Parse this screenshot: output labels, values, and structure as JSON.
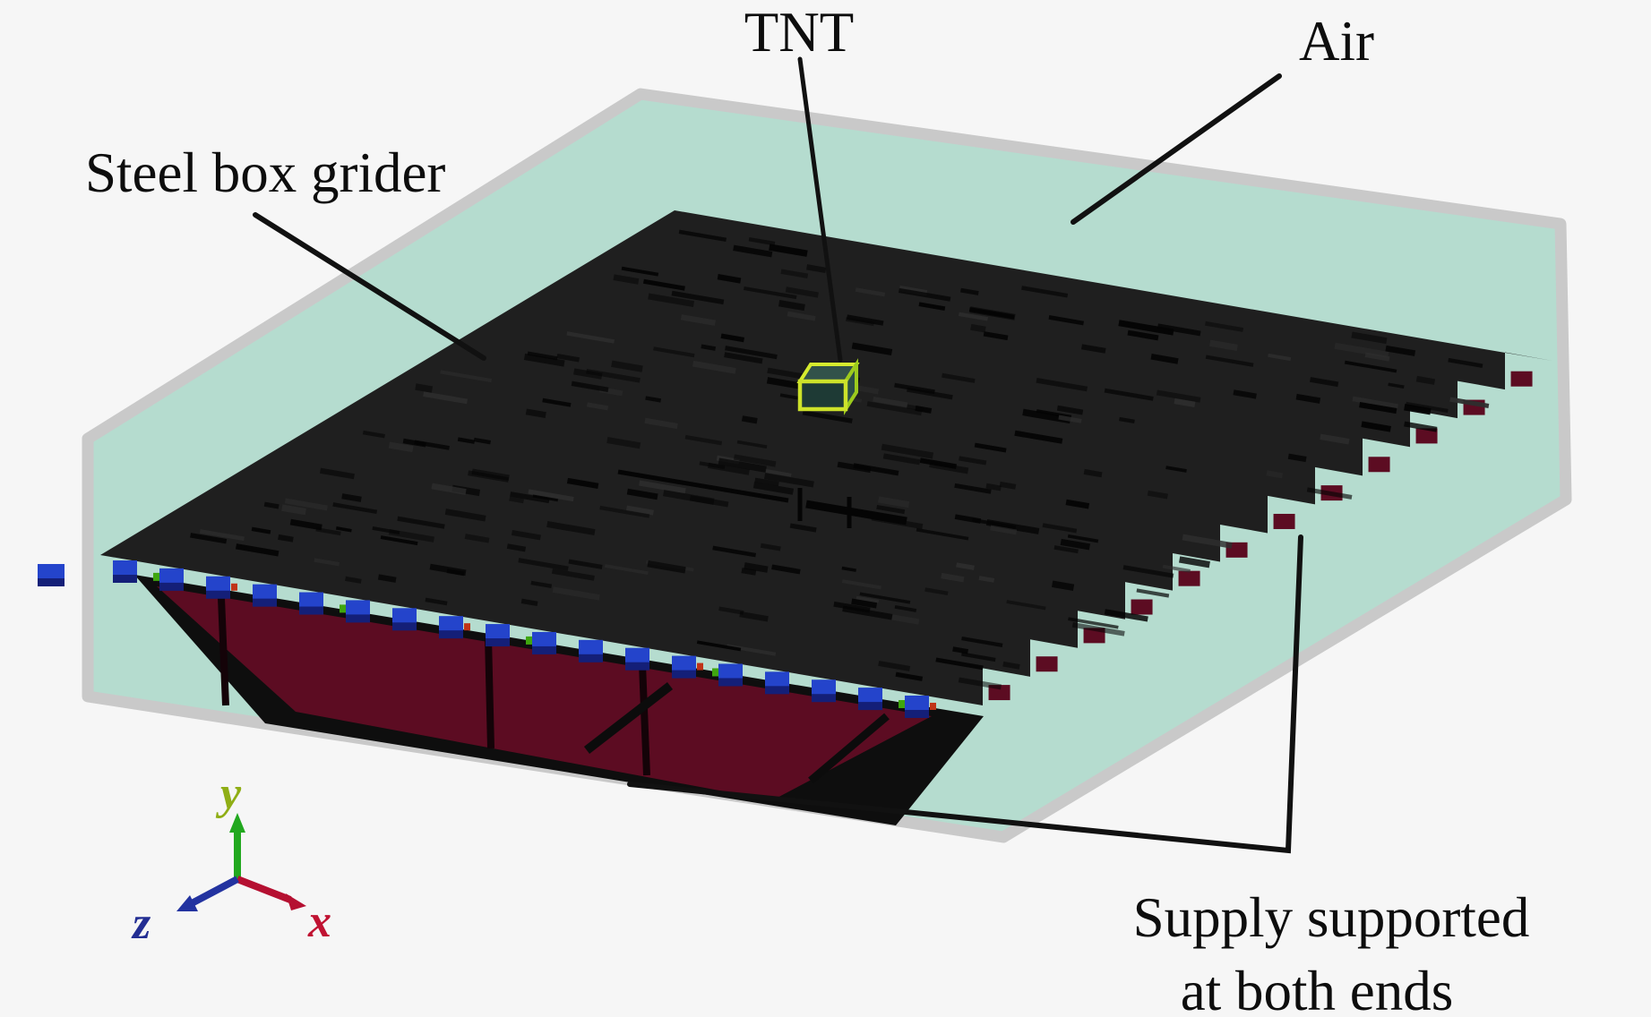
{
  "figure": {
    "labels": {
      "tnt": "TNT",
      "air": "Air",
      "steel_box_girder": "Steel box grider",
      "support_line1": "Supply supported",
      "support_line2": "at both ends"
    },
    "axes": {
      "x_label": "x",
      "y_label": "y",
      "z_label": "z"
    },
    "supports": {
      "count": 18
    },
    "colors": {
      "background": "#f6f6f6",
      "air_fill": "#b5dccf",
      "air_edge": "#c9c9c9",
      "deck_fill": "#1f1f1f",
      "deck_dash": "#040404",
      "girder_web": "#5c0c22",
      "girder_shadow": "#0e0e0e",
      "support_blue": "#2444cb",
      "support_blue_dark": "#141f78",
      "speck_green": "#3fa60f",
      "speck_red": "#c03318",
      "tnt_edge": "#cfe42c",
      "tnt_face_front": "#1e3a35",
      "tnt_face_top": "#32524a",
      "tnt_face_right": "#2c4f47",
      "leader": "#111111",
      "axis_x": "#b51031",
      "axis_y": "#22a81f",
      "axis_z": "#2333a0",
      "axis_x_label": "#c01232",
      "axis_y_label": "#8fae15",
      "axis_z_label": "#232e93"
    }
  }
}
